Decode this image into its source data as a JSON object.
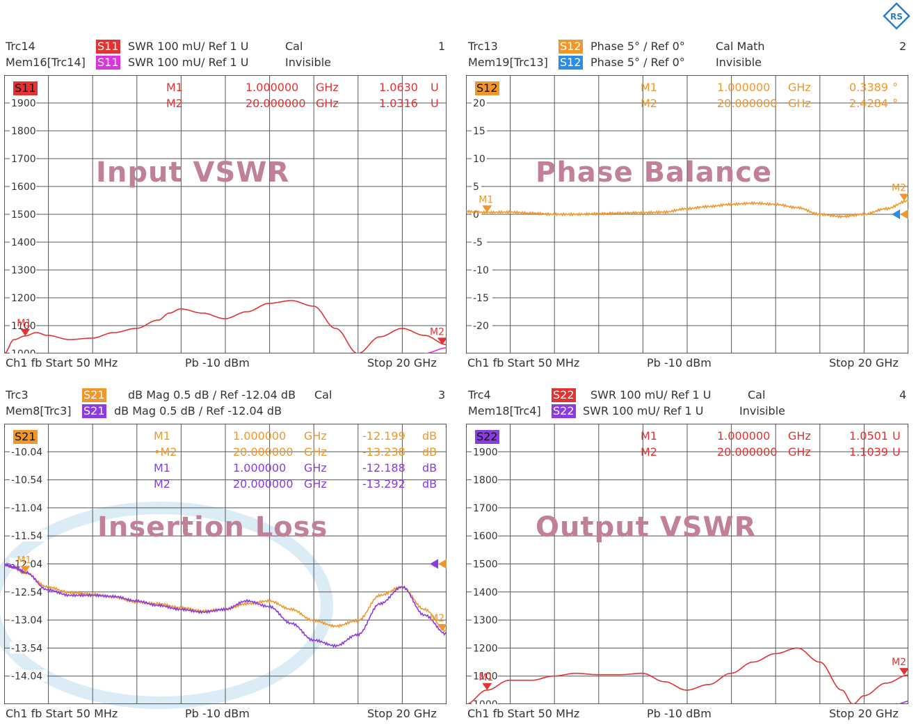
{
  "colors": {
    "s11": "#e23232",
    "s11mem": "#dd33dd",
    "s12": "#f0962a",
    "s12mem": "#2a8ee6",
    "s21": "#f0962a",
    "s21mem": "#8a3ce0",
    "s22": "#e23232",
    "s22mem": "#8a3ce0",
    "watermark": "#6fb4dc"
  },
  "icons": {
    "logo": "rohde-schwarz-logo-icon",
    "marker": "triangle-marker-icon"
  },
  "panels": [
    {
      "id": "p1",
      "trace_name": "Trc14",
      "mem_name": "Mem16[Trc14]",
      "tag1": "S11",
      "tag1_color": "#e23232",
      "line1": "SWR  100 mU/  Ref 1 U",
      "status1": "Cal",
      "tag2": "S11",
      "tag2_color": "#dd33dd",
      "line2": "SWR  100 mU/  Ref 1 U",
      "status2": "Invisible",
      "number": "1",
      "corner_tag": "S11",
      "corner_color": "#e23232",
      "title": "Input VSWR",
      "markers": [
        {
          "name": "M1",
          "freq": "1.000000",
          "unit": "GHz",
          "value": "1.0630",
          "vunit": "U",
          "color": "#e23232"
        },
        {
          "name": "M2",
          "freq": "20.000000",
          "unit": "GHz",
          "value": "1.0316",
          "vunit": "U",
          "color": "#e23232"
        }
      ],
      "ticks": [
        "1900",
        "1800",
        "1700",
        "1600",
        "1500",
        "1400",
        "1300",
        "1200",
        "1100",
        "1000"
      ],
      "footer_left": "Ch1  fb  Start  50 MHz",
      "footer_mid": "Pb  -10 dBm",
      "footer_right": "Stop  20 GHz"
    },
    {
      "id": "p2",
      "trace_name": "Trc13",
      "mem_name": "Mem19[Trc13]",
      "tag1": "S12",
      "tag1_color": "#f0962a",
      "line1": "Phase  5° /  Ref 0°",
      "status1": "Cal Math",
      "tag2": "S12",
      "tag2_color": "#2a8ee6",
      "line2": "Phase  5° /  Ref 0°",
      "status2": "Invisible",
      "number": "2",
      "corner_tag": "S12",
      "corner_color": "#f0962a",
      "title": "Phase Balance",
      "markers": [
        {
          "name": "M1",
          "freq": "1.000000",
          "unit": "GHz",
          "value": "0.3389",
          "vunit": "°",
          "color": "#f0962a"
        },
        {
          "name": "M2",
          "freq": "20.000000",
          "unit": "GHz",
          "value": "2.4284",
          "vunit": "°",
          "color": "#f0962a"
        }
      ],
      "ticks": [
        "20",
        "15",
        "10",
        "5",
        "0",
        "-5",
        "-10",
        "-15",
        "-20",
        ""
      ],
      "footer_left": "Ch1  fb  Start  50 MHz",
      "footer_mid": "Pb  -10 dBm",
      "footer_right": "Stop  20 GHz"
    },
    {
      "id": "p3",
      "trace_name": "Trc3",
      "mem_name": "Mem8[Trc3]",
      "tag1": "S21",
      "tag1_color": "#f0962a",
      "line1": "dB Mag  0.5 dB /  Ref -12.04 dB",
      "status1": "Cal",
      "tag2": "S21",
      "tag2_color": "#8a3ce0",
      "line2": "dB Mag  0.5 dB /  Ref -12.04 dB",
      "status2": "",
      "number": "3",
      "corner_tag": "S21",
      "corner_color": "#f0962a",
      "title": "Insertion Loss",
      "markers": [
        {
          "name": "M1",
          "freq": "1.000000",
          "unit": "GHz",
          "value": "-12.199",
          "vunit": "dB",
          "color": "#f0962a"
        },
        {
          "name": "•M2",
          "freq": "20.000000",
          "unit": "GHz",
          "value": "-13.238",
          "vunit": "dB",
          "color": "#f0962a"
        },
        {
          "name": "M1",
          "freq": "1.000000",
          "unit": "GHz",
          "value": "-12.188",
          "vunit": "dB",
          "color": "#8a3ce0"
        },
        {
          "name": "M2",
          "freq": "20.000000",
          "unit": "GHz",
          "value": "-13.292",
          "vunit": "dB",
          "color": "#8a3ce0"
        }
      ],
      "ticks": [
        "-10.04",
        "-10.54",
        "-11.04",
        "-11.54",
        "-12.04",
        "-12.54",
        "-13.04",
        "-13.54",
        "-14.04",
        ""
      ],
      "footer_left": "Ch1  fb  Start  50 MHz",
      "footer_mid": "Pb  -10 dBm",
      "footer_right": "Stop  20 GHz"
    },
    {
      "id": "p4",
      "trace_name": "Trc4",
      "mem_name": "Mem18[Trc4]",
      "tag1": "S22",
      "tag1_color": "#e23232",
      "line1": "SWR  100 mU/  Ref 1 U",
      "status1": "Cal",
      "tag2": "S22",
      "tag2_color": "#8a3ce0",
      "line2": "SWR  100 mU/  Ref 1 U",
      "status2": "Invisible",
      "number": "4",
      "corner_tag": "S22",
      "corner_color": "#8a3ce0",
      "title": "Output VSWR",
      "markers": [
        {
          "name": "M1",
          "freq": "1.000000",
          "unit": "GHz",
          "value": "1.0501",
          "vunit": "U",
          "color": "#e23232"
        },
        {
          "name": "M2",
          "freq": "20.000000",
          "unit": "GHz",
          "value": "1.1039",
          "vunit": "U",
          "color": "#e23232"
        }
      ],
      "ticks": [
        "1900",
        "1800",
        "1700",
        "1600",
        "1500",
        "1400",
        "1300",
        "1200",
        "1100",
        "1000"
      ],
      "footer_left": "Ch1  fb  Start  50 MHz",
      "footer_mid": "Pb  -10 dBm",
      "footer_right": "Stop  20 GHz"
    }
  ],
  "chart_data": [
    {
      "type": "line",
      "title": "Input VSWR",
      "xunit": "GHz",
      "xlim": [
        0.05,
        20
      ],
      "ylim": [
        1.0,
        2.0
      ],
      "series": [
        {
          "name": "S11",
          "color": "#e23232",
          "x": [
            0.05,
            0.5,
            1,
            1.5,
            2,
            3,
            4,
            5,
            6,
            7,
            7.5,
            8,
            9,
            10,
            11,
            12,
            13,
            14,
            15,
            16,
            17,
            18,
            19,
            20
          ],
          "y": [
            1.0,
            1.05,
            1.063,
            1.075,
            1.065,
            1.05,
            1.055,
            1.075,
            1.09,
            1.12,
            1.145,
            1.16,
            1.145,
            1.125,
            1.15,
            1.18,
            1.19,
            1.17,
            1.09,
            1.0,
            1.06,
            1.09,
            1.065,
            1.0316
          ]
        },
        {
          "name": "S11",
          "color": "#dd33dd",
          "x": [
            19,
            20
          ],
          "y": [
            1.0,
            1.02
          ]
        }
      ],
      "markers": [
        {
          "name": "M1",
          "x": 1,
          "y": 1.063
        },
        {
          "name": "M2",
          "x": 20,
          "y": 1.0316
        }
      ]
    },
    {
      "type": "line",
      "title": "Phase Balance",
      "xunit": "GHz",
      "xlim": [
        0.05,
        20
      ],
      "ylim": [
        -25,
        25
      ],
      "series": [
        {
          "name": "S12",
          "color": "#f0962a",
          "x": [
            0.05,
            1,
            2,
            3,
            4,
            5,
            6,
            7,
            8,
            9,
            10,
            11,
            12,
            13,
            14,
            15,
            16,
            17,
            18,
            19,
            20
          ],
          "y": [
            0.5,
            0.34,
            0.4,
            0.2,
            0.0,
            0.0,
            0.1,
            0.2,
            0.3,
            0.4,
            1.0,
            1.4,
            1.8,
            2.0,
            1.8,
            1.2,
            0.0,
            -0.4,
            0.0,
            1.0,
            2.43
          ]
        }
      ],
      "markers": [
        {
          "name": "M1",
          "x": 1,
          "y": 0.34
        },
        {
          "name": "M2",
          "x": 20,
          "y": 2.43
        }
      ]
    },
    {
      "type": "line",
      "title": "Insertion Loss",
      "xunit": "GHz",
      "xlim": [
        0.05,
        20
      ],
      "ylim": [
        -14.54,
        -9.54
      ],
      "series": [
        {
          "name": "S21",
          "color": "#f0962a",
          "x": [
            0.05,
            0.5,
            1,
            2,
            3,
            4,
            5,
            6,
            7,
            8,
            9,
            10,
            11,
            12,
            13,
            14,
            15,
            16,
            17,
            18,
            19,
            20
          ],
          "y": [
            -12.05,
            -12.1,
            -12.199,
            -12.45,
            -12.55,
            -12.58,
            -12.63,
            -12.72,
            -12.75,
            -12.82,
            -12.88,
            -12.85,
            -12.75,
            -12.7,
            -12.85,
            -13.05,
            -13.15,
            -13.05,
            -12.6,
            -12.45,
            -12.85,
            -13.238
          ]
        },
        {
          "name": "S21",
          "color": "#8a3ce0",
          "x": [
            0.05,
            0.5,
            1,
            2,
            3,
            4,
            5,
            6,
            7,
            8,
            9,
            10,
            11,
            12,
            13,
            14,
            15,
            16,
            17,
            18,
            19,
            20
          ],
          "y": [
            -12.05,
            -12.1,
            -12.188,
            -12.5,
            -12.6,
            -12.6,
            -12.62,
            -12.7,
            -12.78,
            -12.85,
            -12.9,
            -12.85,
            -12.7,
            -12.8,
            -13.1,
            -13.4,
            -13.5,
            -13.3,
            -12.75,
            -12.45,
            -12.95,
            -13.292
          ]
        }
      ],
      "markers": [
        {
          "name": "M1",
          "x": 1,
          "y": -12.199
        },
        {
          "name": "M2",
          "x": 20,
          "y": -13.238
        }
      ]
    },
    {
      "type": "line",
      "title": "Output VSWR",
      "xunit": "GHz",
      "xlim": [
        0.05,
        20
      ],
      "ylim": [
        1.0,
        2.0
      ],
      "series": [
        {
          "name": "S22",
          "color": "#e23232",
          "x": [
            0.05,
            1,
            2,
            3,
            4,
            5,
            6,
            7,
            8,
            9,
            10,
            11,
            12,
            13,
            14,
            15,
            16,
            17,
            17.5,
            18,
            19,
            20
          ],
          "y": [
            1.0,
            1.05,
            1.085,
            1.085,
            1.1,
            1.11,
            1.105,
            1.105,
            1.11,
            1.08,
            1.05,
            1.07,
            1.11,
            1.15,
            1.18,
            1.2,
            1.15,
            1.05,
            1.0,
            1.03,
            1.075,
            1.1039
          ]
        },
        {
          "name": "S22",
          "color": "#8a3ce0",
          "x": [
            19.5,
            20
          ],
          "y": [
            1.0,
            1.01
          ]
        }
      ],
      "markers": [
        {
          "name": "M1",
          "x": 1,
          "y": 1.0501
        },
        {
          "name": "M2",
          "x": 20,
          "y": 1.1039
        }
      ]
    }
  ]
}
